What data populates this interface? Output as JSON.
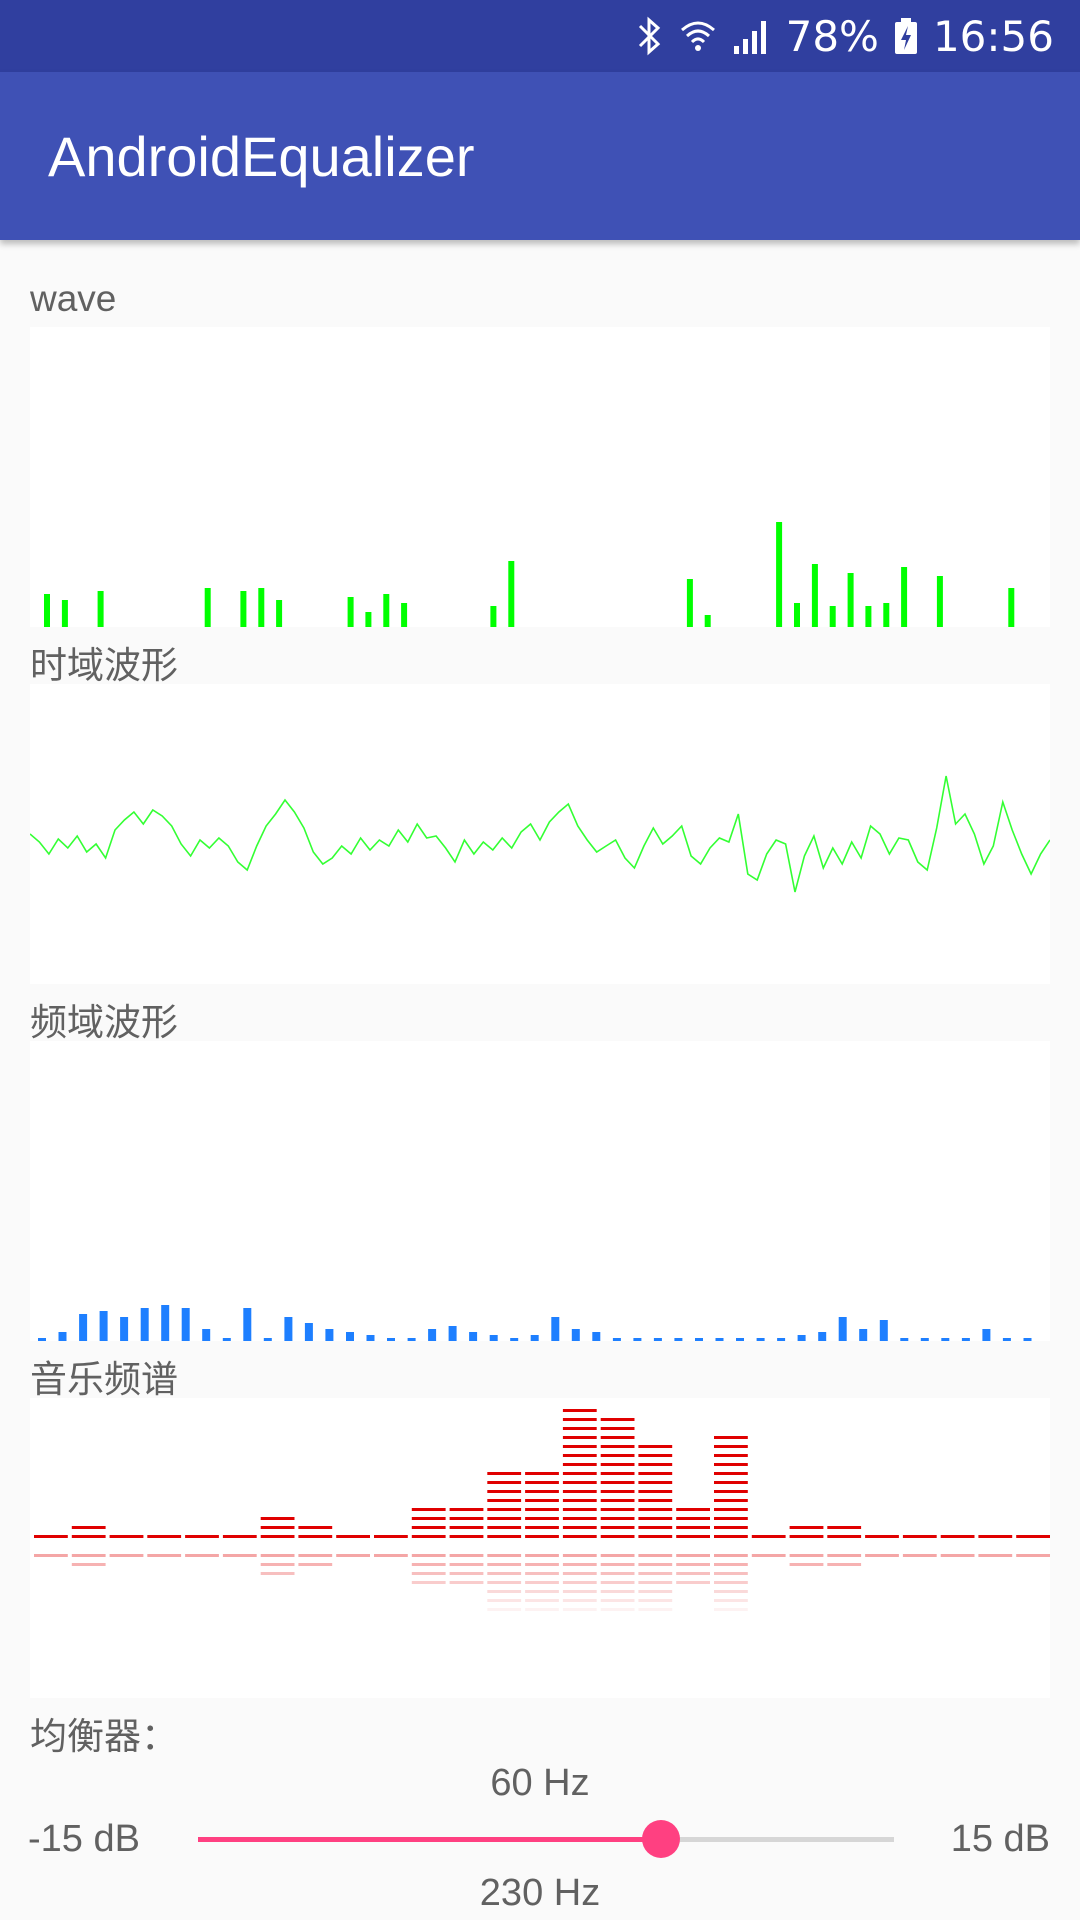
{
  "status_bar": {
    "battery": "78%",
    "time": "16:56",
    "icons": [
      "bluetooth-icon",
      "wifi-icon",
      "signal-icon",
      "battery-charging-icon"
    ]
  },
  "app_bar": {
    "title": "AndroidEqualizer"
  },
  "sections": {
    "wave": "wave",
    "time_domain": "时域波形",
    "freq_domain": "频域波形",
    "spectrum": "音乐频谱"
  },
  "colors": {
    "wave": "#00ff00",
    "time": "#33ff33",
    "freq": "#1e7fff",
    "spectrum": "#e00000",
    "accent": "#ff4081",
    "primary": "#3f51b5",
    "primary_dark": "#303f9f"
  },
  "wave_bars": [
    0.11,
    0.09,
    0,
    0.12,
    0,
    0,
    0,
    0,
    0,
    0.13,
    0,
    0.12,
    0.13,
    0.09,
    0,
    0,
    0,
    0.1,
    0.05,
    0.11,
    0.08,
    0,
    0,
    0,
    0,
    0.07,
    0.22,
    0,
    0,
    0,
    0,
    0,
    0,
    0,
    0,
    0,
    0.16,
    0.04,
    0,
    0,
    0,
    0.35,
    0.08,
    0.21,
    0.07,
    0.18,
    0.07,
    0.08,
    0.2,
    0,
    0.17,
    0,
    0,
    0,
    0.13,
    0
  ],
  "time_wave": [
    0,
    -8,
    -20,
    -5,
    -14,
    -2,
    -18,
    -10,
    -24,
    4,
    14,
    22,
    10,
    24,
    18,
    8,
    -10,
    -22,
    -6,
    -14,
    -4,
    -12,
    -28,
    -36,
    -12,
    8,
    20,
    34,
    22,
    6,
    -18,
    -30,
    -24,
    -12,
    -20,
    -4,
    -16,
    -6,
    -12,
    4,
    -8,
    10,
    -4,
    -2,
    -14,
    -28,
    -6,
    -20,
    -8,
    -16,
    -4,
    -14,
    2,
    10,
    -6,
    12,
    22,
    30,
    8,
    -6,
    -18,
    -12,
    -6,
    -24,
    -34,
    -12,
    6,
    -10,
    -2,
    8,
    -22,
    -30,
    -14,
    -4,
    -8,
    20,
    -40,
    -46,
    -20,
    -6,
    -10,
    -58,
    -22,
    -2,
    -34,
    -14,
    -30,
    -8,
    -24,
    8,
    0,
    -20,
    -4,
    -6,
    -28,
    -36,
    6,
    58,
    10,
    20,
    0,
    -30,
    -12,
    32,
    4,
    -20,
    -40,
    -20,
    -6
  ],
  "freq_bars": [
    0.01,
    0.03,
    0.09,
    0.1,
    0.08,
    0.11,
    0.12,
    0.11,
    0.04,
    0.01,
    0.11,
    0.01,
    0.08,
    0.06,
    0.04,
    0.03,
    0.02,
    0.01,
    0.01,
    0.04,
    0.05,
    0.03,
    0.02,
    0.01,
    0.02,
    0.08,
    0.04,
    0.03,
    0.01,
    0.01,
    0.01,
    0.01,
    0.01,
    0.01,
    0.01,
    0.01,
    0.01,
    0.02,
    0.03,
    0.08,
    0.04,
    0.07,
    0.01,
    0.01,
    0.01,
    0.01,
    0.04,
    0.01,
    0.01
  ],
  "spectrum_levels": [
    1,
    2,
    1,
    1,
    1,
    1,
    3,
    2,
    1,
    1,
    4,
    4,
    8,
    8,
    15,
    14,
    11,
    4,
    12,
    1,
    2,
    2,
    1,
    1,
    1,
    1,
    1
  ],
  "equalizer": {
    "label": "均衡器：",
    "band": {
      "freq": "60 Hz",
      "min": "-15 dB",
      "max": "15 dB",
      "level": 0.665
    },
    "next_band_freq": "230 Hz"
  }
}
